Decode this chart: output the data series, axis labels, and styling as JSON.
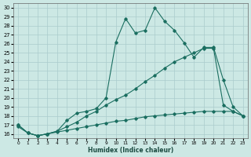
{
  "xlabel": "Humidex (Indice chaleur)",
  "bg_color": "#cce8e4",
  "grid_color": "#aacccc",
  "line_color": "#1a6e60",
  "xlim": [
    -0.5,
    23.5
  ],
  "ylim": [
    15.5,
    30.5
  ],
  "xticks": [
    0,
    1,
    2,
    3,
    4,
    5,
    6,
    7,
    8,
    9,
    10,
    11,
    12,
    13,
    14,
    15,
    16,
    17,
    18,
    19,
    20,
    21,
    22,
    23
  ],
  "yticks": [
    16,
    17,
    18,
    19,
    20,
    21,
    22,
    23,
    24,
    25,
    26,
    27,
    28,
    29,
    30
  ],
  "line_flat_x": [
    0,
    1,
    2,
    3,
    4,
    5,
    6,
    7,
    8,
    9,
    10,
    11,
    12,
    13,
    14,
    15,
    16,
    17,
    18,
    19,
    20,
    21,
    22,
    23
  ],
  "line_flat_y": [
    17.0,
    16.1,
    15.8,
    16.0,
    16.2,
    16.4,
    16.6,
    16.8,
    17.0,
    17.2,
    17.4,
    17.5,
    17.7,
    17.9,
    18.0,
    18.1,
    18.2,
    18.3,
    18.4,
    18.5,
    18.5,
    18.5,
    18.5,
    18.0
  ],
  "line_mid_x": [
    0,
    1,
    2,
    3,
    4,
    5,
    6,
    7,
    8,
    9,
    10,
    11,
    12,
    13,
    14,
    15,
    16,
    17,
    18,
    19,
    20,
    21,
    22,
    23
  ],
  "line_mid_y": [
    16.8,
    16.1,
    15.8,
    16.0,
    16.3,
    16.8,
    17.3,
    18.0,
    18.5,
    19.2,
    19.8,
    20.3,
    21.0,
    21.8,
    22.5,
    23.3,
    24.0,
    24.5,
    25.0,
    25.5,
    25.5,
    19.2,
    18.5,
    18.0
  ],
  "line_top_x": [
    0,
    1,
    2,
    3,
    4,
    5,
    6,
    7,
    8,
    9,
    10,
    11,
    12,
    13,
    14,
    15,
    16,
    17,
    18,
    19,
    20,
    21,
    22,
    23
  ],
  "line_top_y": [
    17.0,
    16.1,
    15.8,
    16.0,
    16.3,
    17.5,
    18.3,
    18.5,
    18.8,
    20.0,
    26.2,
    28.8,
    27.2,
    27.5,
    30.0,
    28.5,
    27.5,
    26.1,
    24.5,
    25.6,
    25.6,
    22.0,
    19.0,
    18.0
  ]
}
